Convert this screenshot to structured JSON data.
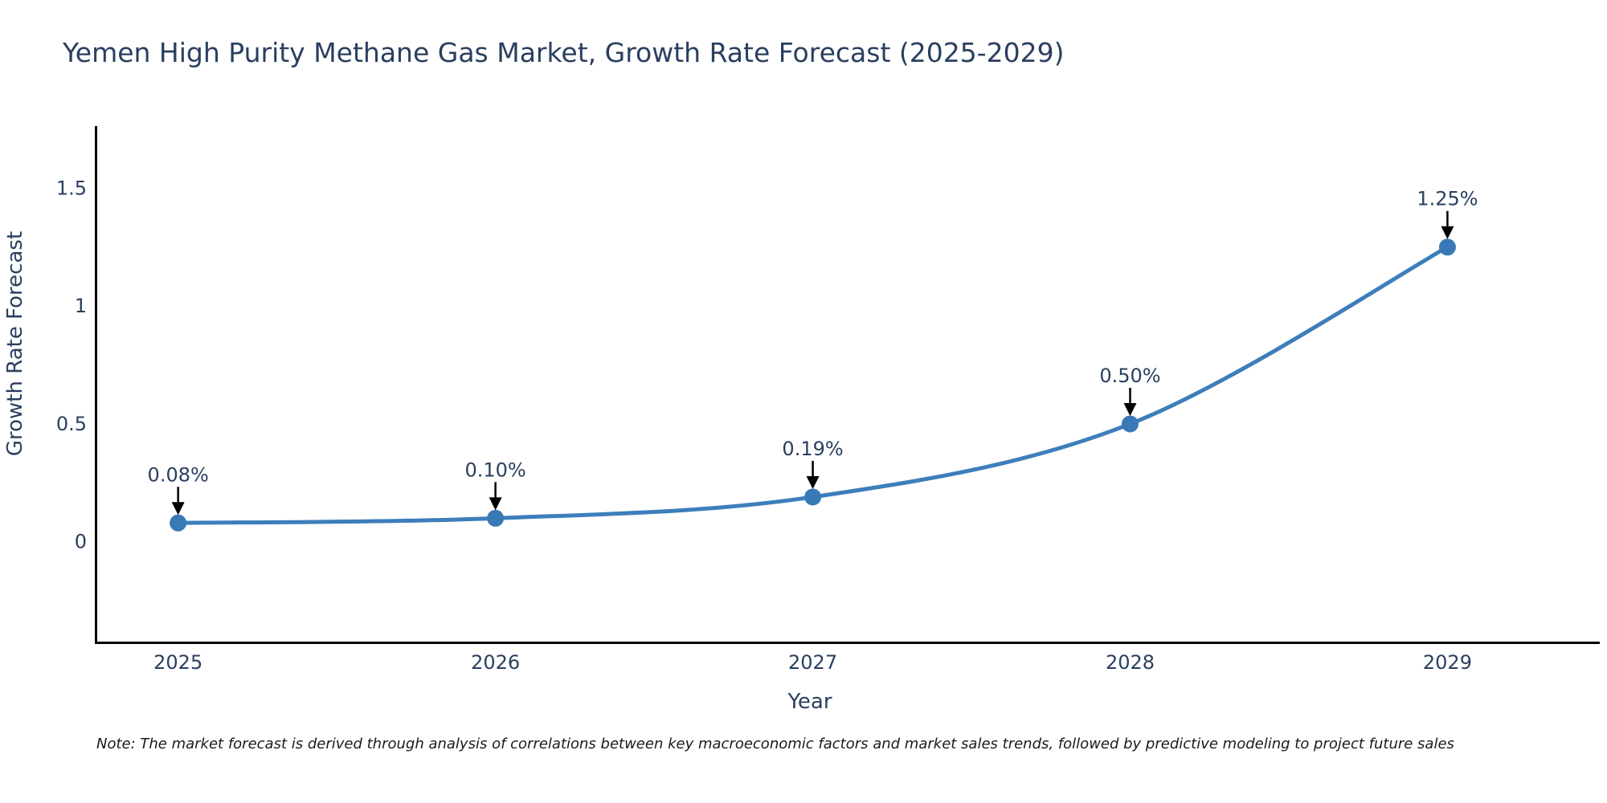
{
  "title": "Yemen High Purity Methane Gas Market, Growth Rate Forecast (2025-2029)",
  "note": "Note: The market forecast is derived through analysis of correlations between key macroeconomic factors and market sales trends, followed by predictive modeling to project future sales",
  "colors": {
    "title_text": "#2a3f5f",
    "tick_text": "#2a3f5f",
    "annotation_text": "#2a3f5f",
    "axis_line": "#000000",
    "line": "#3d7ebb",
    "marker": "#3879b6",
    "arrow": "#000000",
    "background": "#ffffff"
  },
  "chart_data": {
    "type": "line",
    "title": "Yemen High Purity Methane Gas Market, Growth Rate Forecast (2025-2029)",
    "xlabel": "Year",
    "ylabel": "Growth Rate Forecast",
    "x": [
      2025,
      2026,
      2027,
      2028,
      2029
    ],
    "series": [
      {
        "name": "Growth Rate Forecast",
        "values": [
          0.08,
          0.1,
          0.19,
          0.5,
          1.25
        ]
      }
    ],
    "point_labels": [
      "0.08%",
      "0.10%",
      "0.19%",
      "0.50%",
      "1.25%"
    ],
    "xtick_labels": [
      "2025",
      "2026",
      "2027",
      "2028",
      "2029"
    ],
    "yticks": [
      0,
      0.5,
      1,
      1.5
    ],
    "ytick_labels": [
      "0",
      "0.5",
      "1",
      "1.5"
    ],
    "xlim": [
      2024.74,
      2029.48
    ],
    "ylim": [
      -0.43,
      1.76
    ],
    "grid": false,
    "legend_position": "none",
    "line_shape": "spline",
    "line_width": 5,
    "marker_radius": 10.5
  }
}
